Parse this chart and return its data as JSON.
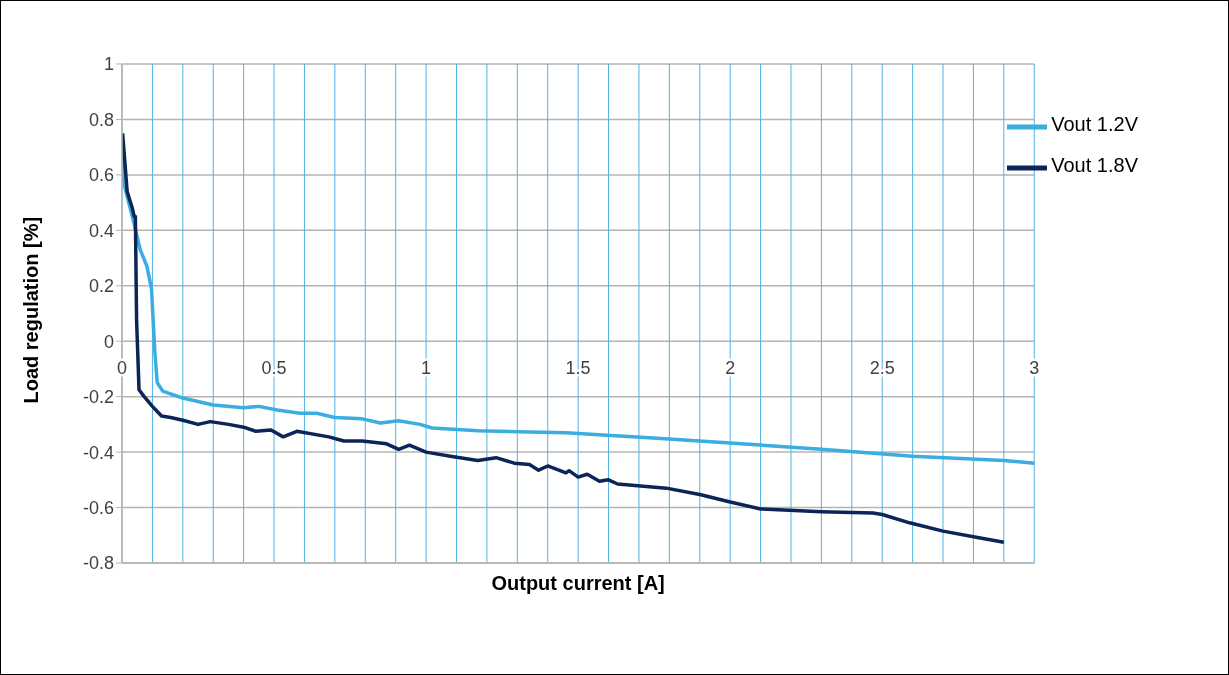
{
  "chart_data": {
    "type": "line",
    "xlabel": "Output current [A]",
    "ylabel": "Load regulation [%]",
    "xlim": [
      0,
      3
    ],
    "ylim": [
      -0.8,
      1
    ],
    "xticks": [
      0,
      {
        "value": 0.1,
        "label": null
      },
      {
        "value": 0.2,
        "label": null
      },
      {
        "value": 0.3,
        "label": null
      },
      {
        "value": 0.4,
        "label": null
      },
      0.5,
      {
        "value": 0.6,
        "label": null
      },
      {
        "value": 0.7,
        "label": null
      },
      {
        "value": 0.8,
        "label": null
      },
      {
        "value": 0.9,
        "label": null
      },
      1,
      {
        "value": 1.1,
        "label": null
      },
      {
        "value": 1.2,
        "label": null
      },
      {
        "value": 1.3,
        "label": null
      },
      {
        "value": 1.4,
        "label": null
      },
      1.5,
      {
        "value": 1.6,
        "label": null
      },
      {
        "value": 1.7,
        "label": null
      },
      {
        "value": 1.8,
        "label": null
      },
      {
        "value": 1.9,
        "label": null
      },
      2,
      {
        "value": 2.1,
        "label": null
      },
      {
        "value": 2.2,
        "label": null
      },
      {
        "value": 2.3,
        "label": null
      },
      {
        "value": 2.4,
        "label": null
      },
      2.5,
      {
        "value": 2.6,
        "label": null
      },
      {
        "value": 2.7,
        "label": null
      },
      {
        "value": 2.8,
        "label": null
      },
      {
        "value": 2.9,
        "label": null
      },
      3
    ],
    "yticks": [
      -0.8,
      -0.6,
      -0.4,
      -0.2,
      0,
      0.2,
      0.4,
      0.6,
      0.8,
      1
    ],
    "grid": true,
    "legend": "top right",
    "marker": "none",
    "line_style": "solid",
    "series": [
      {
        "name": "Vout 1.2V",
        "color": "#3aaee0",
        "x": [
          0.002,
          0.006,
          0.034,
          0.06,
          0.082,
          0.097,
          0.108,
          0.116,
          0.134,
          0.2,
          0.3,
          0.4,
          0.45,
          0.51,
          0.585,
          0.64,
          0.7,
          0.79,
          0.85,
          0.91,
          0.98,
          1.02,
          1.17,
          1.46,
          1.76,
          2.0,
          2.3,
          2.6,
          2.9,
          3.0
        ],
        "values": [
          0.69,
          0.57,
          0.45,
          0.33,
          0.27,
          0.19,
          -0.04,
          -0.15,
          -0.18,
          -0.205,
          -0.23,
          -0.24,
          -0.235,
          -0.248,
          -0.26,
          -0.26,
          -0.275,
          -0.28,
          -0.295,
          -0.287,
          -0.3,
          -0.313,
          -0.323,
          -0.33,
          -0.35,
          -0.367,
          -0.39,
          -0.415,
          -0.43,
          -0.44
        ]
      },
      {
        "name": "Vout 1.8V",
        "color": "#0b2556",
        "x": [
          0.002,
          0.017,
          0.034,
          0.04,
          0.044,
          0.048,
          0.056,
          0.073,
          0.1,
          0.13,
          0.16,
          0.2,
          0.25,
          0.29,
          0.35,
          0.4,
          0.44,
          0.49,
          0.53,
          0.575,
          0.68,
          0.73,
          0.79,
          0.87,
          0.91,
          0.945,
          1.0,
          1.08,
          1.17,
          1.23,
          1.29,
          1.34,
          1.37,
          1.4,
          1.46,
          1.47,
          1.5,
          1.53,
          1.57,
          1.6,
          1.63,
          1.79,
          1.9,
          2.0,
          2.1,
          2.3,
          2.47,
          2.5,
          2.59,
          2.7,
          2.8,
          2.9
        ],
        "values": [
          0.75,
          0.54,
          0.48,
          0.45,
          0.45,
          0.075,
          -0.175,
          -0.2,
          -0.235,
          -0.27,
          -0.275,
          -0.285,
          -0.3,
          -0.29,
          -0.3,
          -0.31,
          -0.325,
          -0.32,
          -0.345,
          -0.325,
          -0.345,
          -0.36,
          -0.36,
          -0.37,
          -0.39,
          -0.375,
          -0.4,
          -0.415,
          -0.43,
          -0.42,
          -0.44,
          -0.445,
          -0.465,
          -0.45,
          -0.475,
          -0.467,
          -0.49,
          -0.48,
          -0.505,
          -0.5,
          -0.515,
          -0.53,
          -0.553,
          -0.58,
          -0.605,
          -0.615,
          -0.62,
          -0.625,
          -0.655,
          -0.685,
          -0.705,
          -0.725
        ]
      }
    ]
  }
}
